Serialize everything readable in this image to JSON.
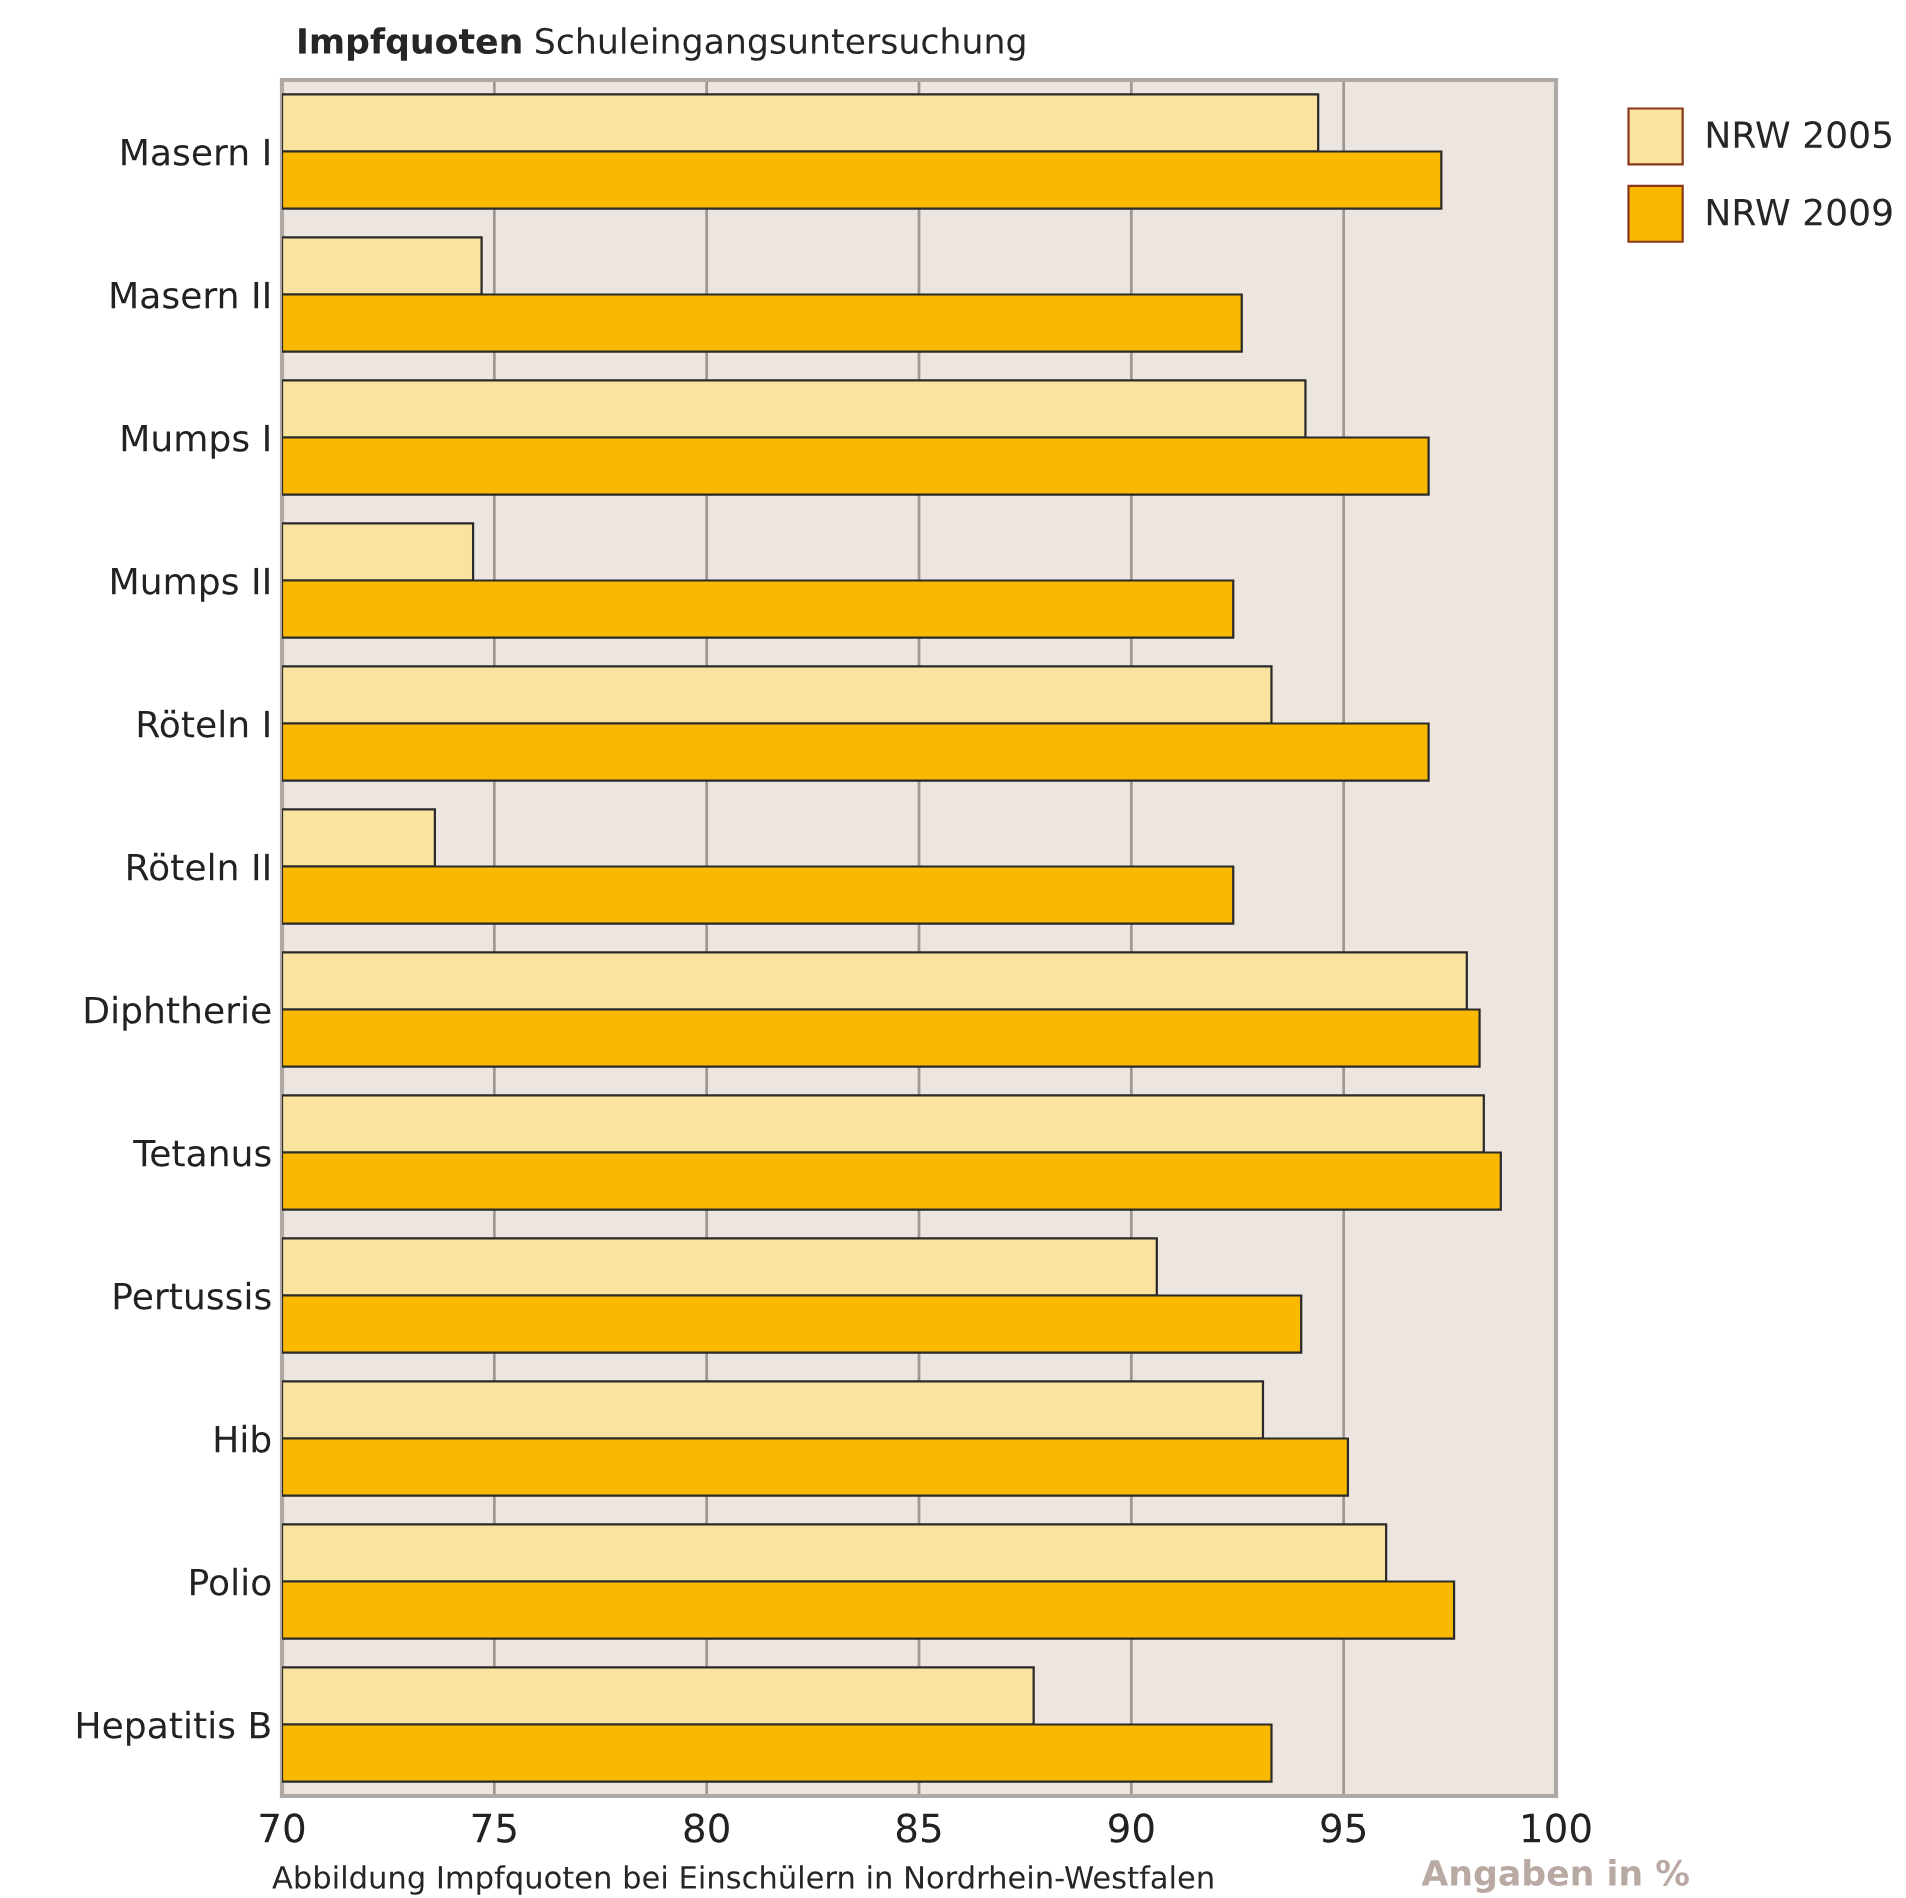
{
  "chart_data": {
    "type": "bar",
    "orientation": "horizontal",
    "title": "Impfquoten",
    "subtitle": "Schuleingangsuntersuchung",
    "xlabel": "Angaben in %",
    "annotations": [
      "Abbildung Impfquoten bei Einschülern in Nordrhein-Westfalen"
    ],
    "categories": [
      "Masern I",
      "Masern II",
      "Mumps I",
      "Mumps II",
      "Röteln I",
      "Röteln II",
      "Diphtherie",
      "Tetanus",
      "Pertussis",
      "Hib",
      "Polio",
      "Hepatitis B"
    ],
    "series": [
      {
        "name": "NRW 2005",
        "color": "#fae29f",
        "values": [
          94.4,
          74.7,
          94.1,
          74.5,
          93.3,
          73.6,
          97.9,
          98.3,
          90.6,
          93.1,
          96.0,
          87.7
        ]
      },
      {
        "name": "NRW 2009",
        "color": "#f9b900",
        "values": [
          97.3,
          92.6,
          97.0,
          92.4,
          97.0,
          92.4,
          98.2,
          98.7,
          94.0,
          95.1,
          97.6,
          93.3
        ]
      }
    ],
    "xlim": [
      70,
      100
    ],
    "xticks": [
      70,
      75,
      80,
      85,
      90,
      95,
      100
    ],
    "grid": "x",
    "legend": "top right"
  }
}
